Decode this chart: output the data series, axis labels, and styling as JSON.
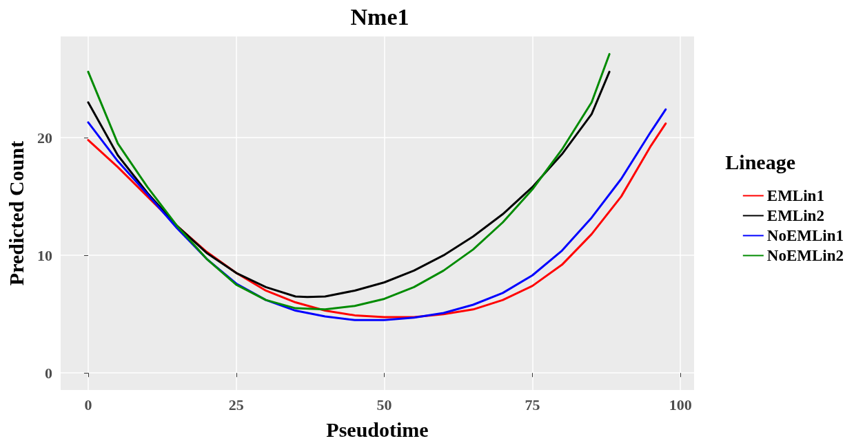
{
  "chart_data": {
    "type": "line",
    "title": "Nme1",
    "xlabel": "Pseudotime",
    "ylabel": "Predicted Count",
    "legend_title": "Lineage",
    "xlim": [
      -4.65,
      102.3
    ],
    "ylim": [
      -1.45,
      28.6
    ],
    "xticks": [
      0,
      25,
      50,
      75,
      100
    ],
    "yticks": [
      0,
      10,
      20
    ],
    "grid": true,
    "legend": "right",
    "marker": "none",
    "line_style": "solid",
    "series": [
      {
        "name": "EMLin1",
        "color": "#ff0000",
        "x": [
          0,
          5,
          10,
          15,
          20,
          25,
          30,
          35,
          40,
          45,
          50,
          55,
          60,
          65,
          70,
          75,
          80,
          85,
          90,
          95,
          97.5
        ],
        "values": [
          19.8,
          17.5,
          15.0,
          12.5,
          10.3,
          8.5,
          7.0,
          6.0,
          5.3,
          4.9,
          4.75,
          4.75,
          5.0,
          5.4,
          6.2,
          7.4,
          9.2,
          11.8,
          15.0,
          19.3,
          21.2
        ]
      },
      {
        "name": "EMLin2",
        "color": "#000000",
        "x": [
          0,
          5,
          10,
          15,
          20,
          25,
          30,
          35,
          37,
          40,
          45,
          50,
          55,
          60,
          65,
          70,
          75,
          80,
          85,
          88
        ],
        "values": [
          23.0,
          18.5,
          15.3,
          12.5,
          10.2,
          8.5,
          7.3,
          6.5,
          6.45,
          6.5,
          7.0,
          7.7,
          8.7,
          10.0,
          11.6,
          13.5,
          15.8,
          18.6,
          22.0,
          25.6
        ]
      },
      {
        "name": "NoEMLin1",
        "color": "#0000ff",
        "x": [
          0,
          5,
          10,
          15,
          20,
          25,
          30,
          35,
          40,
          45,
          50,
          55,
          60,
          65,
          70,
          75,
          80,
          85,
          90,
          95,
          97.5
        ],
        "values": [
          21.3,
          18.0,
          15.2,
          12.3,
          9.7,
          7.6,
          6.2,
          5.3,
          4.8,
          4.5,
          4.5,
          4.7,
          5.1,
          5.8,
          6.8,
          8.3,
          10.4,
          13.2,
          16.5,
          20.5,
          22.4
        ]
      },
      {
        "name": "NoEMLin2",
        "color": "#008b00",
        "x": [
          0,
          5,
          10,
          15,
          20,
          25,
          30,
          35,
          40,
          45,
          50,
          55,
          60,
          65,
          70,
          75,
          80,
          85,
          88
        ],
        "values": [
          25.6,
          19.5,
          15.8,
          12.5,
          9.7,
          7.5,
          6.2,
          5.5,
          5.4,
          5.7,
          6.3,
          7.3,
          8.7,
          10.5,
          12.8,
          15.6,
          19.0,
          23.0,
          27.1
        ]
      }
    ]
  }
}
